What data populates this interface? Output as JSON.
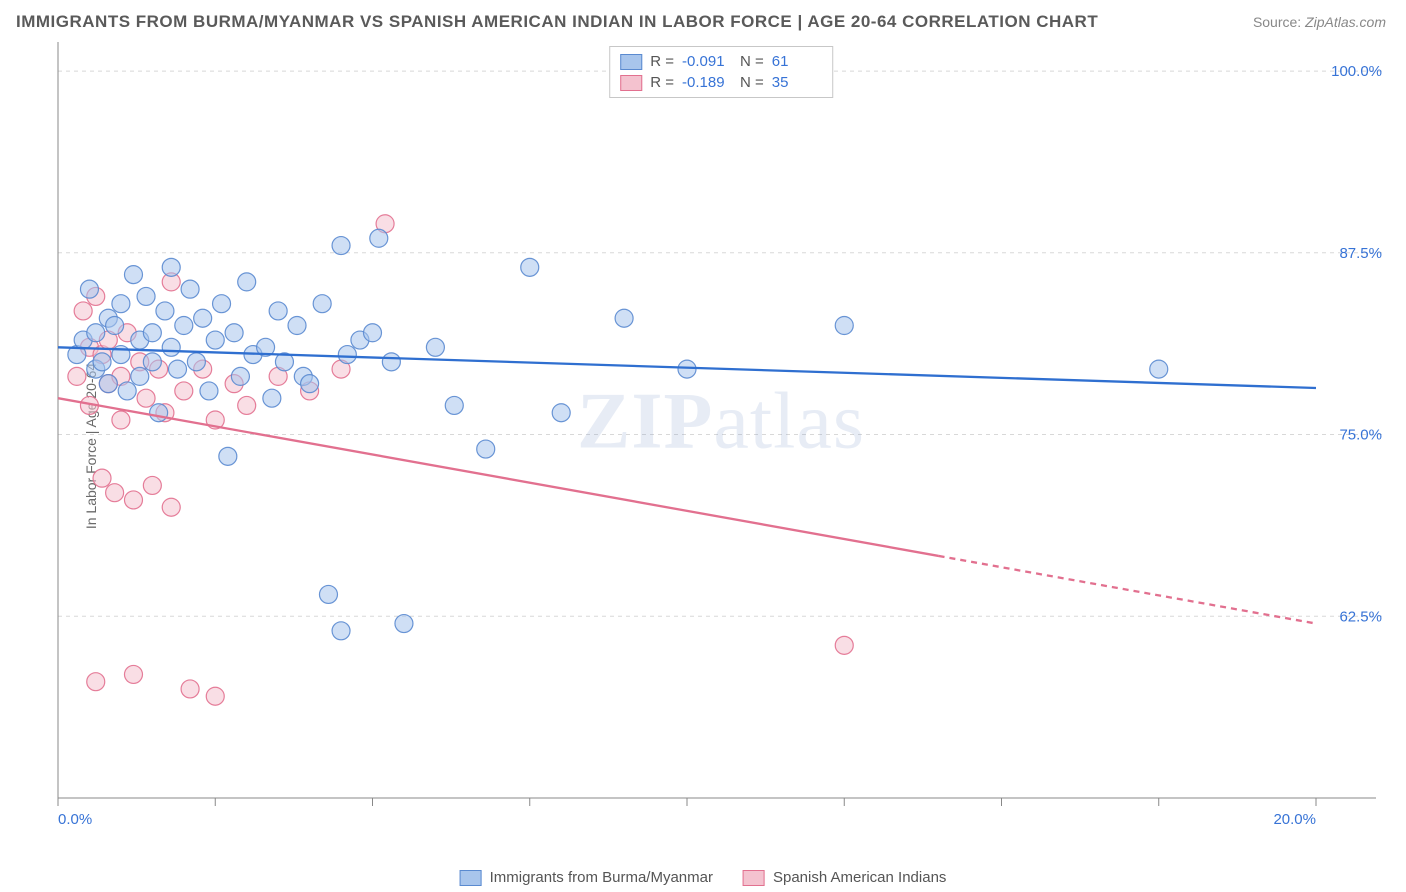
{
  "title": "IMMIGRANTS FROM BURMA/MYANMAR VS SPANISH AMERICAN INDIAN IN LABOR FORCE | AGE 20-64 CORRELATION CHART",
  "source_label": "Source:",
  "source_value": "ZipAtlas.com",
  "watermark": "ZIPatlas",
  "ylabel": "In Labor Force | Age 20-64",
  "chart": {
    "type": "scatter",
    "xlim": [
      0.0,
      20.0
    ],
    "ylim": [
      50.0,
      102.0
    ],
    "y_gridlines": [
      62.5,
      75.0,
      87.5,
      100.0
    ],
    "y_tick_labels": [
      "62.5%",
      "75.0%",
      "87.5%",
      "100.0%"
    ],
    "x_ticks": [
      0.0,
      2.5,
      5.0,
      7.5,
      10.0,
      12.5,
      15.0,
      17.5,
      20.0
    ],
    "x_tick_labels_shown": {
      "0.0": "0.0%",
      "20.0": "20.0%"
    },
    "background_color": "#ffffff",
    "grid_color": "#d8d8d8",
    "axis_color": "#888888",
    "marker_radius": 9,
    "marker_opacity": 0.55,
    "series": [
      {
        "name": "Immigrants from Burma/Myanmar",
        "color_fill": "#a8c5ec",
        "color_stroke": "#5a8ad0",
        "R": "-0.091",
        "N": "61",
        "regression": {
          "x1": 0.0,
          "y1": 81.0,
          "x2": 20.0,
          "y2": 78.2,
          "solid_end_x": 20.0,
          "color": "#2f6fd0",
          "width": 2.3
        },
        "points": [
          [
            0.3,
            80.5
          ],
          [
            0.4,
            81.5
          ],
          [
            0.5,
            85.0
          ],
          [
            0.6,
            79.5
          ],
          [
            0.6,
            82.0
          ],
          [
            0.7,
            80.0
          ],
          [
            0.8,
            83.0
          ],
          [
            0.8,
            78.5
          ],
          [
            0.9,
            82.5
          ],
          [
            1.0,
            84.0
          ],
          [
            1.0,
            80.5
          ],
          [
            1.1,
            78.0
          ],
          [
            1.2,
            86.0
          ],
          [
            1.3,
            81.5
          ],
          [
            1.3,
            79.0
          ],
          [
            1.4,
            84.5
          ],
          [
            1.5,
            80.0
          ],
          [
            1.5,
            82.0
          ],
          [
            1.6,
            76.5
          ],
          [
            1.7,
            83.5
          ],
          [
            1.8,
            81.0
          ],
          [
            1.8,
            86.5
          ],
          [
            1.9,
            79.5
          ],
          [
            2.0,
            82.5
          ],
          [
            2.1,
            85.0
          ],
          [
            2.2,
            80.0
          ],
          [
            2.3,
            83.0
          ],
          [
            2.4,
            78.0
          ],
          [
            2.5,
            81.5
          ],
          [
            2.6,
            84.0
          ],
          [
            2.7,
            73.5
          ],
          [
            2.8,
            82.0
          ],
          [
            2.9,
            79.0
          ],
          [
            3.0,
            85.5
          ],
          [
            3.1,
            80.5
          ],
          [
            3.3,
            81.0
          ],
          [
            3.4,
            77.5
          ],
          [
            3.5,
            83.5
          ],
          [
            3.6,
            80.0
          ],
          [
            3.8,
            82.5
          ],
          [
            3.9,
            79.0
          ],
          [
            4.0,
            78.5
          ],
          [
            4.2,
            84.0
          ],
          [
            4.3,
            64.0
          ],
          [
            4.5,
            88.0
          ],
          [
            4.6,
            80.5
          ],
          [
            4.8,
            81.5
          ],
          [
            5.0,
            82.0
          ],
          [
            5.1,
            88.5
          ],
          [
            5.3,
            80.0
          ],
          [
            5.5,
            62.0
          ],
          [
            6.0,
            81.0
          ],
          [
            6.3,
            77.0
          ],
          [
            6.8,
            74.0
          ],
          [
            7.5,
            86.5
          ],
          [
            8.0,
            76.5
          ],
          [
            9.0,
            83.0
          ],
          [
            10.0,
            79.5
          ],
          [
            12.5,
            82.5
          ],
          [
            17.5,
            79.5
          ],
          [
            4.5,
            61.5
          ]
        ]
      },
      {
        "name": "Spanish American Indians",
        "color_fill": "#f4c2cf",
        "color_stroke": "#e2708f",
        "R": "-0.189",
        "N": "35",
        "regression": {
          "x1": 0.0,
          "y1": 77.5,
          "x2": 20.0,
          "y2": 62.0,
          "solid_end_x": 14.0,
          "color": "#e2708f",
          "width": 2.3
        },
        "points": [
          [
            0.3,
            79.0
          ],
          [
            0.4,
            83.5
          ],
          [
            0.5,
            81.0
          ],
          [
            0.5,
            77.0
          ],
          [
            0.6,
            84.5
          ],
          [
            0.7,
            80.5
          ],
          [
            0.7,
            72.0
          ],
          [
            0.8,
            81.5
          ],
          [
            0.8,
            78.5
          ],
          [
            0.9,
            71.0
          ],
          [
            1.0,
            79.0
          ],
          [
            1.0,
            76.0
          ],
          [
            1.1,
            82.0
          ],
          [
            1.2,
            70.5
          ],
          [
            1.2,
            58.5
          ],
          [
            1.3,
            80.0
          ],
          [
            1.4,
            77.5
          ],
          [
            1.5,
            71.5
          ],
          [
            1.6,
            79.5
          ],
          [
            1.7,
            76.5
          ],
          [
            1.8,
            85.5
          ],
          [
            1.8,
            70.0
          ],
          [
            2.0,
            78.0
          ],
          [
            2.1,
            57.5
          ],
          [
            2.3,
            79.5
          ],
          [
            2.5,
            76.0
          ],
          [
            2.5,
            57.0
          ],
          [
            2.8,
            78.5
          ],
          [
            3.0,
            77.0
          ],
          [
            3.5,
            79.0
          ],
          [
            4.0,
            78.0
          ],
          [
            4.5,
            79.5
          ],
          [
            5.2,
            89.5
          ],
          [
            0.6,
            58.0
          ],
          [
            12.5,
            60.5
          ]
        ]
      }
    ]
  },
  "legend_top": {
    "r_label": "R =",
    "n_label": "N ="
  },
  "legend_bottom": {
    "items": [
      "Immigrants from Burma/Myanmar",
      "Spanish American Indians"
    ]
  }
}
